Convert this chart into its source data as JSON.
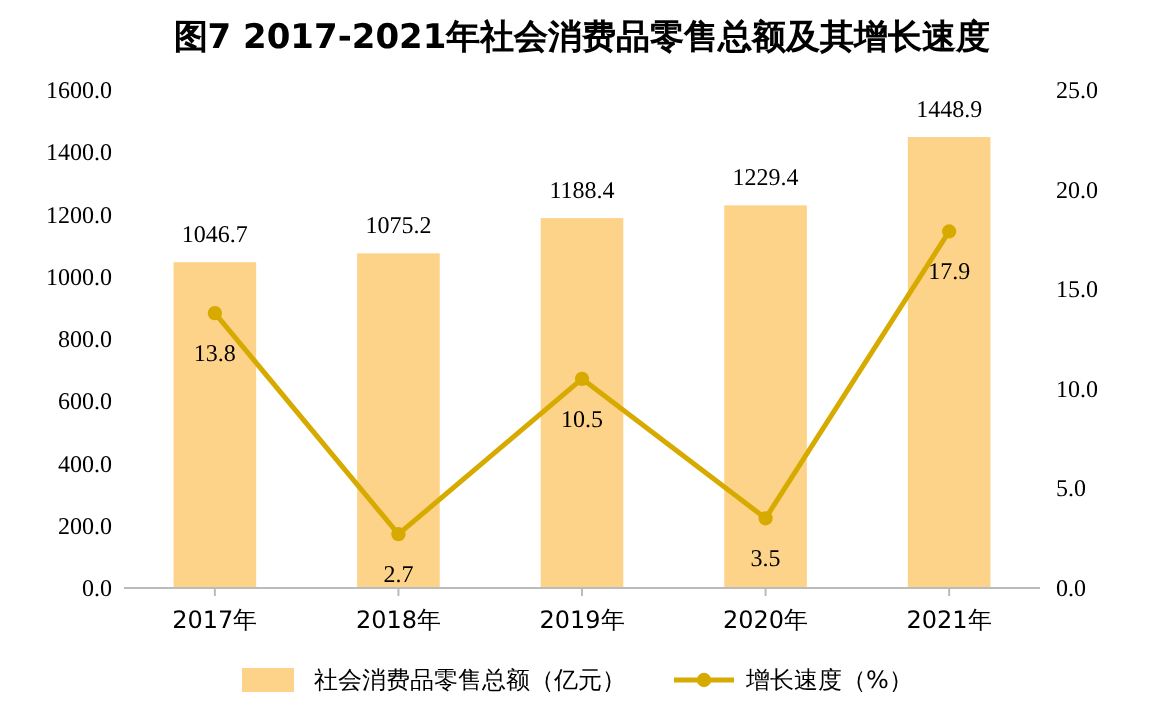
{
  "chart_data": {
    "type": "bar",
    "title": "图7 2017-2021年社会消费品零售总额及其增长速度",
    "categories": [
      "2017年",
      "2018年",
      "2019年",
      "2020年",
      "2021年"
    ],
    "series": [
      {
        "name": "社会消费品零售总额（亿元）",
        "color": "#fdd38a",
        "values": [
          1046.7,
          1075.2,
          1188.4,
          1229.4,
          1448.9
        ]
      },
      {
        "name": "增长速度（%）",
        "type": "line",
        "axis": "y2",
        "color": "#d7aa00",
        "values": [
          13.8,
          2.7,
          10.5,
          3.5,
          17.9
        ]
      }
    ],
    "ylim": [
      0,
      1600
    ],
    "yticks": [
      {
        "value": 0,
        "label": "0.0"
      },
      {
        "value": 200,
        "label": "200.0"
      },
      {
        "value": 400,
        "label": "400.0"
      },
      {
        "value": 600,
        "label": "600.0"
      },
      {
        "value": 800,
        "label": "800.0"
      },
      {
        "value": 1000,
        "label": "1000.0"
      },
      {
        "value": 1200,
        "label": "1200.0"
      },
      {
        "value": 1400,
        "label": "1400.0"
      },
      {
        "value": 1600,
        "label": "1600.0"
      }
    ],
    "y2lim": [
      0,
      25
    ],
    "y2ticks": [
      {
        "value": 0,
        "label": "0.0"
      },
      {
        "value": 5,
        "label": "5.0"
      },
      {
        "value": 10,
        "label": "10.0"
      },
      {
        "value": 15,
        "label": "15.0"
      },
      {
        "value": 20,
        "label": "20.0"
      },
      {
        "value": 25,
        "label": "25.0"
      }
    ],
    "data_labels": true,
    "marker": "circle",
    "legend": "bottom",
    "grid": false
  }
}
